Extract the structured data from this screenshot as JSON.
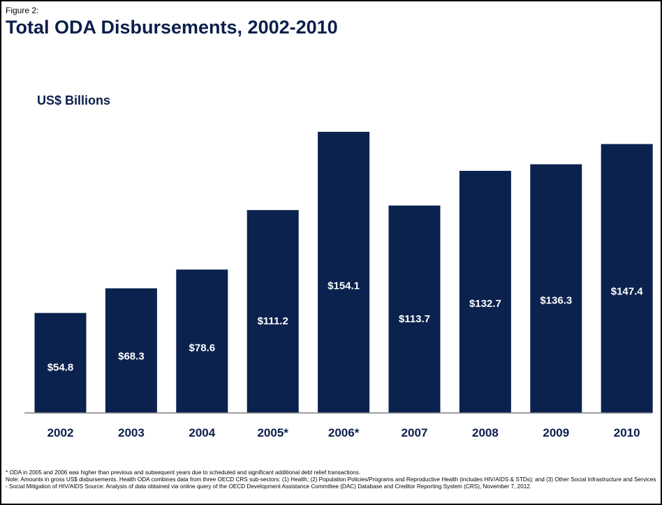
{
  "figure_label": "Figure 2:",
  "title": "Total ODA Disbursements, 2002-2010",
  "colors": {
    "bar": "#0b224e",
    "text": "#0b1f4b",
    "axis": "#7f7f7f"
  },
  "chart_data": {
    "type": "bar",
    "ylabel": "US$ Billions",
    "categories": [
      "2002",
      "2003",
      "2004",
      "2005*",
      "2006*",
      "2007",
      "2008",
      "2009",
      "2010"
    ],
    "values": [
      54.8,
      68.3,
      78.6,
      111.2,
      154.1,
      113.7,
      132.7,
      136.3,
      147.4
    ],
    "data_labels": [
      "$54.8",
      "$68.3",
      "$78.6",
      "$111.2",
      "$154.1",
      "$113.7",
      "$132.7",
      "$136.3",
      "$147.4"
    ],
    "ylim": [
      0,
      156
    ],
    "grid": false
  },
  "notes": [
    "* ODA in 2005 and 2006 was higher than previous and subsequent years due to scheduled and significant additional debt relief transactions.",
    "Note: Amounts in gross US$ disbursements. Health ODA combines data from three OECD CRS sub-sectors: (1) Health; (2) Population Policies/Programs and Reproductive Health (includes HIV/AIDS & STDs); and (3) Other Social Infrastructure and Services - Social Mitigation of HIV/AIDS Source: Analysis of data obtained via online query of the OECD Development Assistance Committee (DAC) Database and Creditor Reporting System (CRS), November 7, 2012."
  ]
}
